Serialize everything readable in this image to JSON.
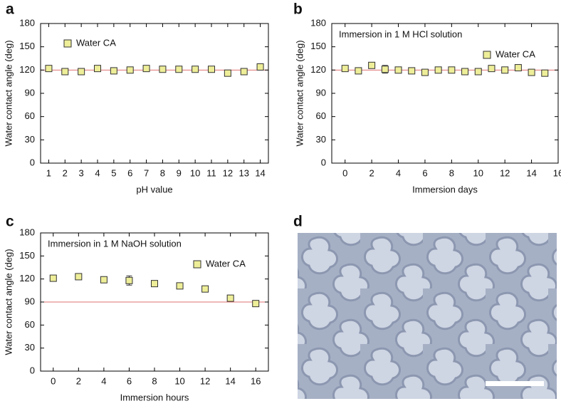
{
  "chart_data": [
    {
      "type": "scatter",
      "panel": "a",
      "xlabel": "pH value",
      "ylabel": "Water contact angle (deg)",
      "x": [
        1,
        2,
        3,
        4,
        5,
        6,
        7,
        8,
        9,
        10,
        11,
        12,
        13,
        14
      ],
      "series": [
        {
          "name": "Water CA",
          "color": "#eeee99",
          "values": [
            122,
            118,
            118,
            122,
            119,
            120,
            122,
            121,
            121,
            121,
            121,
            116,
            118,
            124
          ],
          "errors": [
            2,
            2,
            2,
            2,
            2,
            2,
            2,
            2,
            2,
            2,
            2,
            2,
            2,
            2
          ]
        }
      ],
      "ref_line": 120,
      "ref_line_color": "#e07070",
      "xlim": [
        0.5,
        14.5
      ],
      "xticks": [
        1,
        2,
        3,
        4,
        5,
        6,
        7,
        8,
        9,
        10,
        11,
        12,
        13,
        14
      ],
      "ylim": [
        0,
        180
      ],
      "yticks": [
        0,
        30,
        60,
        90,
        120,
        150,
        180
      ],
      "legend": "upper left"
    },
    {
      "type": "scatter",
      "panel": "b",
      "xlabel": "Immersion days",
      "ylabel": "Water contact angle (deg)",
      "annotation": "Immersion in 1 M HCl solution",
      "x": [
        0,
        1,
        2,
        3,
        4,
        5,
        6,
        7,
        8,
        9,
        10,
        11,
        12,
        13,
        14,
        15
      ],
      "series": [
        {
          "name": "Water CA",
          "color": "#eeee99",
          "values": [
            122,
            119,
            126,
            121,
            120,
            119,
            117,
            120,
            120,
            118,
            118,
            122,
            120,
            123,
            117,
            116
          ],
          "errors": [
            2,
            2,
            2,
            5,
            2,
            2,
            2,
            3,
            3,
            2,
            2,
            2,
            2,
            2,
            2,
            2
          ]
        }
      ],
      "ref_line": 120,
      "ref_line_color": "#e07070",
      "xlim": [
        -1,
        16
      ],
      "xticks": [
        0,
        2,
        4,
        6,
        8,
        10,
        12,
        14,
        16
      ],
      "ylim": [
        0,
        180
      ],
      "yticks": [
        0,
        30,
        60,
        90,
        120,
        150,
        180
      ],
      "legend": "upper right"
    },
    {
      "type": "scatter",
      "panel": "c",
      "xlabel": "Immersion hours",
      "ylabel": "Water contact angle (deg)",
      "annotation": "Immersion in 1 M NaOH solution",
      "x": [
        0,
        2,
        4,
        6,
        8,
        10,
        12,
        14,
        16
      ],
      "series": [
        {
          "name": "Water CA",
          "color": "#eeee99",
          "values": [
            121,
            123,
            119,
            118,
            114,
            111,
            107,
            95,
            88
          ],
          "errors": [
            3,
            3,
            3,
            6,
            3,
            3,
            3,
            3,
            3
          ]
        }
      ],
      "ref_line": 90,
      "ref_line_color": "#e07070",
      "xlim": [
        -1,
        17
      ],
      "xticks": [
        0,
        2,
        4,
        6,
        8,
        10,
        12,
        14,
        16
      ],
      "ylim": [
        0,
        180
      ],
      "yticks": [
        0,
        30,
        60,
        90,
        120,
        150,
        180
      ],
      "legend": "upper right"
    }
  ],
  "image_panel": {
    "label": "d"
  }
}
